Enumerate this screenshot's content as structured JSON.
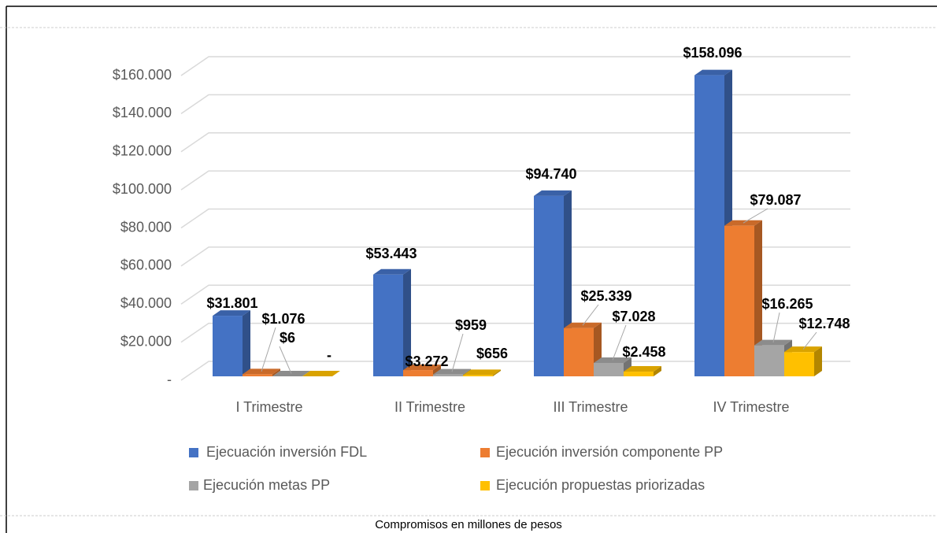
{
  "chart_data": {
    "type": "bar3d",
    "caption": "Compromisos en millones de pesos",
    "categories": [
      "I Trimestre",
      "II Trimestre",
      "III Trimestre",
      "IV Trimestre"
    ],
    "series": [
      {
        "name": "Ejecuación inversión FDL",
        "color": "#4472c4",
        "values": [
          31801,
          53443,
          94740,
          158096
        ],
        "value_labels": [
          "$31.801",
          "$53.443",
          "$94.740",
          "$158.096"
        ]
      },
      {
        "name": "Ejecución inversión componente PP",
        "color": "#ed7d31",
        "values": [
          1076,
          3272,
          25339,
          79087
        ],
        "value_labels": [
          "$1.076",
          "$3.272",
          "$25.339",
          "$79.087"
        ]
      },
      {
        "name": "Ejecución metas PP",
        "color": "#a5a5a5",
        "values": [
          6,
          959,
          7028,
          16265
        ],
        "value_labels": [
          "$6",
          "$959",
          "$7.028",
          "$16.265"
        ]
      },
      {
        "name": "Ejecución propuestas priorizadas",
        "color": "#ffc000",
        "values": [
          0,
          656,
          2458,
          12748
        ],
        "value_labels": [
          "-",
          "$656",
          "$2.458",
          "$12.748"
        ]
      }
    ],
    "ylim": [
      0,
      160000
    ],
    "yticks": [
      {
        "value": 0,
        "label": "-"
      },
      {
        "value": 20000,
        "label": "$20.000"
      },
      {
        "value": 40000,
        "label": "$40.000"
      },
      {
        "value": 60000,
        "label": "$60.000"
      },
      {
        "value": 80000,
        "label": "$80.000"
      },
      {
        "value": 100000,
        "label": "$100.000"
      },
      {
        "value": 120000,
        "label": "$120.000"
      },
      {
        "value": 140000,
        "label": "$140.000"
      },
      {
        "value": 160000,
        "label": "$160.000"
      }
    ],
    "grid": true,
    "legend": "bottom"
  }
}
